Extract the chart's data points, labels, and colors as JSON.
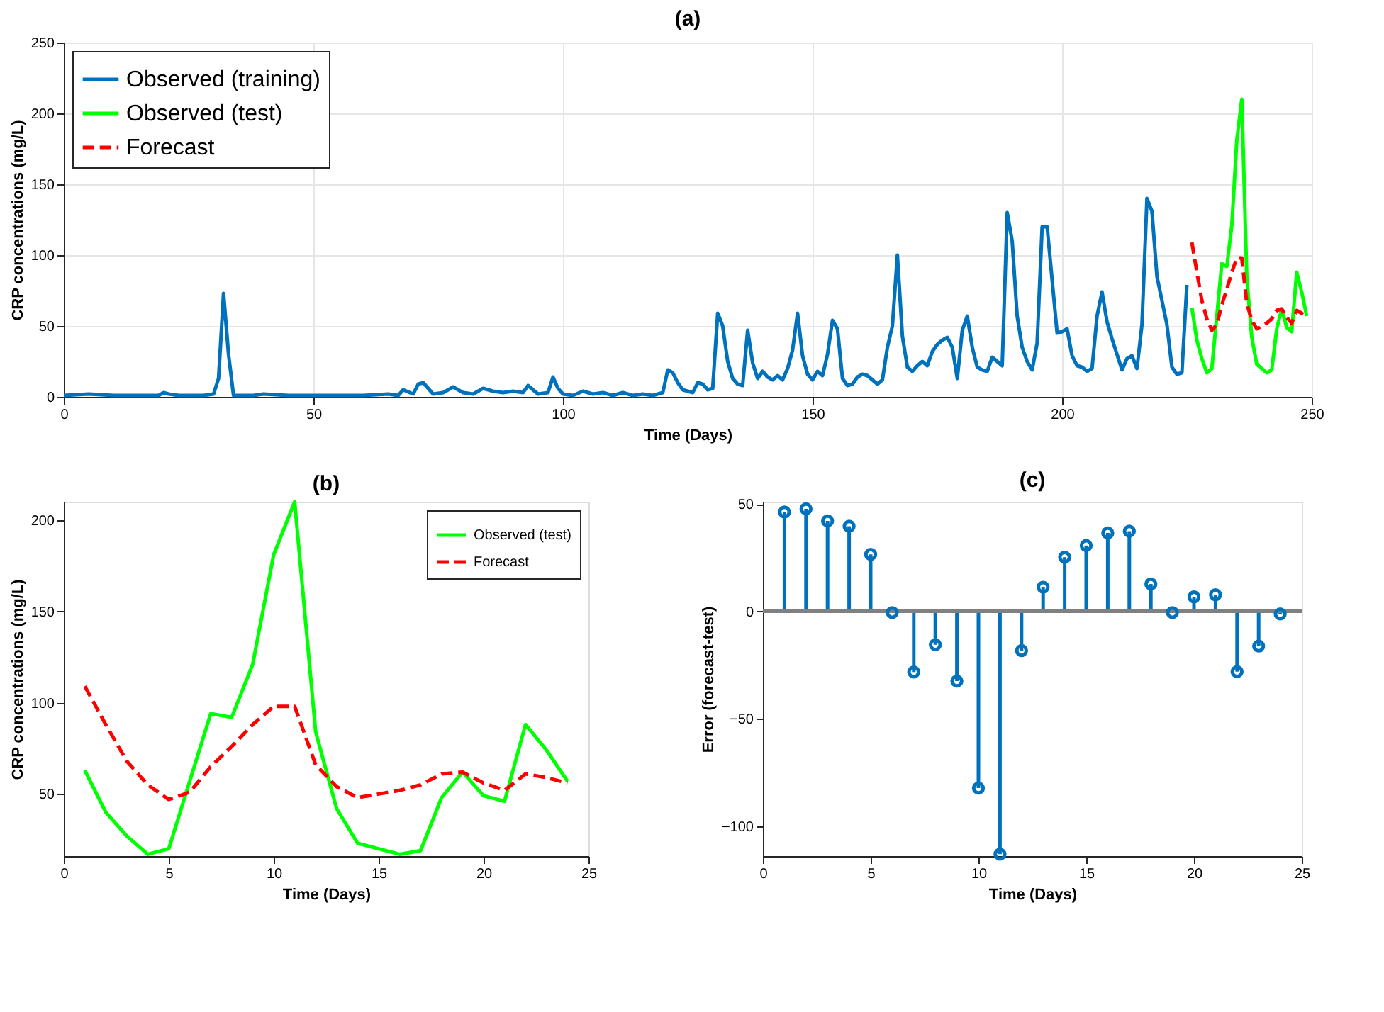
{
  "chart_data": [
    {
      "type": "line",
      "title": "(a)",
      "xlabel": "Time (Days)",
      "ylabel": "CRP concentrations (mg/L)",
      "xlim": [
        0,
        250
      ],
      "xticks": [
        0,
        50,
        100,
        150,
        200,
        250
      ],
      "ylim": [
        0,
        250
      ],
      "yticks": [
        0,
        50,
        100,
        150,
        200,
        250
      ],
      "grid": true,
      "legend": "top left",
      "series": [
        {
          "name": "Observed (training)",
          "color": "#0072bd",
          "x": [
            0,
            5,
            10,
            15,
            19,
            20,
            21,
            23,
            28,
            30,
            31,
            32,
            33,
            34,
            38,
            40,
            45,
            50,
            55,
            60,
            65,
            67,
            68,
            70,
            71,
            72,
            74,
            76,
            78,
            80,
            82,
            84,
            86,
            88,
            90,
            92,
            93,
            95,
            97,
            98,
            99,
            100,
            102,
            104,
            106,
            108,
            110,
            112,
            114,
            116,
            118,
            120,
            121,
            122,
            123,
            124,
            126,
            127,
            128,
            129,
            130,
            131,
            132,
            133,
            134,
            135,
            136,
            137,
            138,
            139,
            140,
            141,
            142,
            143,
            144,
            145,
            146,
            147,
            148,
            149,
            150,
            151,
            152,
            153,
            154,
            155,
            156,
            157,
            158,
            159,
            160,
            161,
            162,
            163,
            164,
            165,
            166,
            167,
            168,
            169,
            170,
            171,
            172,
            173,
            174,
            175,
            176,
            177,
            178,
            179,
            180,
            181,
            182,
            183,
            184,
            185,
            186,
            187,
            188,
            189,
            190,
            191,
            192,
            193,
            194,
            195,
            196,
            197,
            199,
            200,
            201,
            202,
            203,
            204,
            205,
            206,
            207,
            208,
            209,
            210,
            211,
            212,
            213,
            214,
            215,
            216,
            217,
            218,
            219,
            221,
            222,
            223,
            224,
            225
          ],
          "values": [
            1,
            2,
            1,
            1,
            1,
            3,
            2,
            1,
            1,
            2,
            13,
            73,
            30,
            1,
            1,
            2,
            1,
            1,
            1,
            1,
            2,
            1,
            5,
            2,
            9,
            10,
            2,
            3,
            7,
            3,
            2,
            6,
            4,
            3,
            4,
            3,
            8,
            2,
            3,
            14,
            6,
            2,
            1,
            4,
            2,
            3,
            1,
            3,
            1,
            2,
            1,
            3,
            19,
            17,
            10,
            5,
            3,
            10,
            9,
            5,
            6,
            59,
            50,
            25,
            13,
            9,
            8,
            47,
            24,
            13,
            18,
            14,
            12,
            15,
            12,
            20,
            33,
            59,
            29,
            16,
            12,
            18,
            15,
            30,
            54,
            48,
            13,
            8,
            9,
            14,
            16,
            15,
            12,
            9,
            12,
            35,
            50,
            100,
            43,
            21,
            18,
            22,
            25,
            22,
            32,
            37,
            40,
            42,
            35,
            13,
            47,
            57,
            35,
            21,
            19,
            18,
            28,
            25,
            22,
            130,
            110,
            57,
            35,
            25,
            19,
            38,
            120,
            120,
            45,
            46,
            48,
            29,
            22,
            21,
            18,
            20,
            57,
            74,
            53,
            41,
            30,
            19,
            27,
            29,
            20,
            51,
            140,
            131,
            85,
            51,
            21,
            16,
            17,
            79
          ]
        },
        {
          "name": "Observed (test)",
          "color": "#00ff00",
          "x": [
            226,
            227,
            228,
            229,
            230,
            231,
            232,
            233,
            234,
            235,
            236,
            237,
            238,
            239,
            240,
            241,
            242,
            243,
            244,
            245,
            246,
            247,
            248,
            249
          ],
          "values": [
            63,
            40,
            27,
            17,
            20,
            57,
            94,
            92,
            121,
            181,
            210,
            84,
            42,
            23,
            20,
            17,
            19,
            48,
            62,
            49,
            46,
            88,
            74,
            57
          ]
        },
        {
          "name": "Forecast",
          "color": "#ff0000",
          "line_style": "dashed",
          "x": [
            226,
            227,
            228,
            229,
            230,
            231,
            232,
            233,
            234,
            235,
            236,
            237,
            238,
            239,
            240,
            241,
            242,
            243,
            244,
            245,
            246,
            247,
            248,
            249
          ],
          "values": [
            109,
            88,
            68,
            55,
            47,
            51,
            65,
            76,
            88,
            98,
            98,
            66,
            54,
            48,
            50,
            52,
            55,
            61,
            62,
            56,
            52,
            61,
            59,
            56
          ]
        }
      ]
    },
    {
      "type": "line",
      "title": "(b)",
      "xlabel": "Time (Days)",
      "ylabel": "CRP concentrations (mg/L)",
      "xlim": [
        0,
        25
      ],
      "xticks": [
        0,
        5,
        10,
        15,
        20,
        25
      ],
      "ylim": [
        16,
        210
      ],
      "yticks": [
        50,
        100,
        150,
        200
      ],
      "legend": "top right",
      "x": [
        1,
        2,
        3,
        4,
        5,
        6,
        7,
        8,
        9,
        10,
        11,
        12,
        13,
        14,
        15,
        16,
        17,
        18,
        19,
        20,
        21,
        22,
        23,
        24
      ],
      "series": [
        {
          "name": "Observed (test)",
          "color": "#00ff00",
          "values": [
            63,
            40,
            27,
            17,
            20,
            57,
            94,
            92,
            121,
            181,
            210,
            84,
            42,
            23,
            20,
            17,
            19,
            48,
            62,
            49,
            46,
            88,
            74,
            57
          ]
        },
        {
          "name": "Forecast",
          "color": "#ff0000",
          "line_style": "dashed",
          "values": [
            109,
            88,
            68,
            55,
            47,
            51,
            65,
            76,
            88,
            98,
            98,
            66,
            54,
            48,
            50,
            52,
            55,
            61,
            62,
            56,
            52,
            61,
            59,
            56
          ]
        }
      ]
    },
    {
      "type": "lollipop",
      "title": "(c)",
      "xlabel": "Time (Days)",
      "ylabel": "Error (forecast-test)",
      "xlim": [
        0,
        25
      ],
      "xticks": [
        0,
        5,
        10,
        15,
        20,
        25
      ],
      "ylim": [
        -114,
        51
      ],
      "yticks": [
        -100,
        -50,
        0,
        50
      ],
      "marker": "circle",
      "color": "#0072bd",
      "x": [
        1,
        2,
        3,
        4,
        5,
        6,
        7,
        8,
        9,
        10,
        11,
        12,
        13,
        14,
        15,
        16,
        17,
        18,
        19,
        20,
        21,
        22,
        23,
        24
      ],
      "values": [
        46.2,
        47.7,
        42.1,
        39.6,
        26.5,
        -0.6,
        -28.3,
        -15.6,
        -32.5,
        -82.3,
        -113.1,
        -18.3,
        11.2,
        25.2,
        30.6,
        36.5,
        37.3,
        12.7,
        -0.6,
        6.7,
        7.7,
        -28.1,
        -16.2,
        -1.2
      ]
    }
  ]
}
